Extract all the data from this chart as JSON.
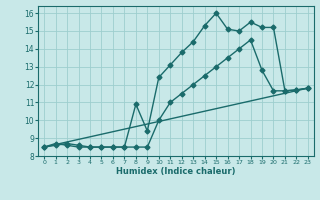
{
  "line1_x": [
    0,
    1,
    2,
    3,
    4,
    5,
    6,
    7,
    8,
    9,
    10,
    11,
    12,
    13,
    14,
    15,
    16,
    17,
    18,
    19,
    20,
    21,
    22,
    23
  ],
  "line1_y": [
    8.5,
    8.7,
    8.6,
    8.5,
    8.5,
    8.5,
    8.5,
    8.5,
    10.9,
    9.4,
    12.4,
    13.1,
    13.8,
    14.4,
    15.3,
    16.0,
    15.1,
    15.0,
    15.5,
    15.2,
    15.2,
    11.65,
    11.7,
    11.8
  ],
  "line2_x": [
    0,
    1,
    2,
    3,
    4,
    5,
    6,
    7,
    8,
    9,
    10,
    11,
    12,
    13,
    14,
    15,
    16,
    17,
    18,
    19,
    20,
    21,
    22,
    23
  ],
  "line2_y": [
    8.5,
    8.6,
    8.7,
    8.6,
    8.5,
    8.5,
    8.5,
    8.5,
    8.5,
    8.5,
    10.0,
    11.0,
    11.5,
    12.0,
    12.5,
    13.0,
    13.5,
    14.0,
    14.5,
    12.8,
    11.65,
    11.65,
    11.7,
    11.8
  ],
  "line3_x": [
    0,
    23
  ],
  "line3_y": [
    8.5,
    11.8
  ],
  "color": "#1a6b6b",
  "bg_color": "#c8e8e8",
  "grid_color": "#9ecece",
  "xlabel": "Humidex (Indice chaleur)",
  "xlim": [
    -0.5,
    23.5
  ],
  "ylim": [
    8,
    16.4
  ],
  "yticks": [
    8,
    9,
    10,
    11,
    12,
    13,
    14,
    15,
    16
  ],
  "xticks": [
    0,
    1,
    2,
    3,
    4,
    5,
    6,
    7,
    8,
    9,
    10,
    11,
    12,
    13,
    14,
    15,
    16,
    17,
    18,
    19,
    20,
    21,
    22,
    23
  ],
  "marker": "D",
  "markersize": 2.5,
  "linewidth": 1.0
}
